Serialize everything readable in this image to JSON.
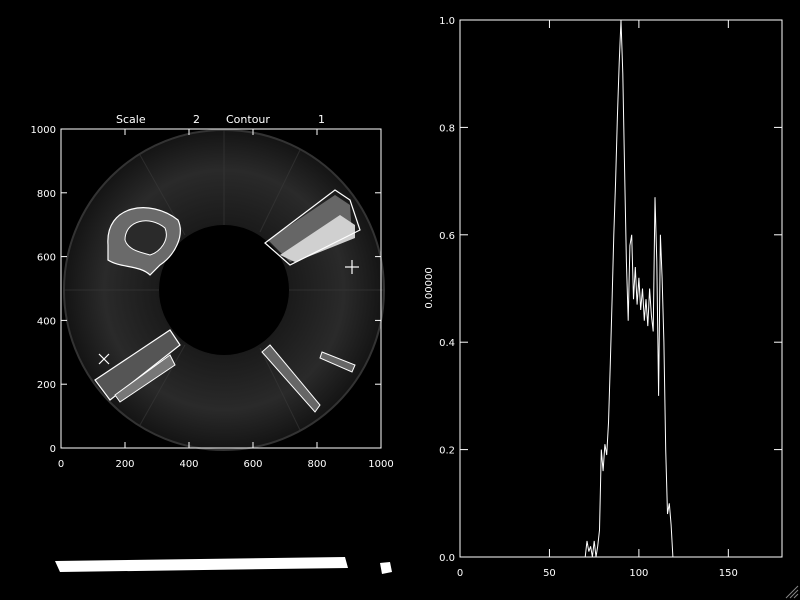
{
  "image_panel": {
    "header": {
      "scale_label": "Scale",
      "scale_value": "2",
      "contour_label": "Contour",
      "contour_value": "1"
    },
    "x_ticks": [
      "0",
      "200",
      "400",
      "600",
      "800",
      "1000"
    ],
    "y_ticks": [
      "0",
      "200",
      "400",
      "600",
      "800",
      "1000"
    ]
  },
  "chart_data": {
    "type": "line",
    "title": "",
    "xlabel": "",
    "ylabel": "0.00000",
    "xlim": [
      0,
      180
    ],
    "ylim": [
      0,
      1.0
    ],
    "x_ticks": [
      "0",
      "50",
      "100",
      "150"
    ],
    "y_ticks": [
      "0.0",
      "0.2",
      "0.4",
      "0.6",
      "0.8",
      "1.0"
    ],
    "series": [
      {
        "x": [
          0,
          70,
          71,
          72,
          73,
          74,
          75,
          76,
          77,
          78,
          79,
          80,
          81,
          82,
          83,
          84,
          85,
          86,
          87,
          88,
          89,
          90,
          91,
          92,
          93,
          94,
          95,
          96,
          97,
          98,
          99,
          100,
          101,
          102,
          103,
          104,
          105,
          106,
          107,
          108,
          109,
          110,
          111,
          112,
          113,
          114,
          115,
          116,
          117,
          118,
          119,
          120,
          121,
          180
        ],
        "y": [
          0,
          0,
          0.03,
          0.01,
          0.02,
          0.0,
          0.03,
          0.0,
          0.02,
          0.05,
          0.2,
          0.16,
          0.21,
          0.19,
          0.25,
          0.36,
          0.48,
          0.6,
          0.7,
          0.82,
          0.92,
          1.0,
          0.9,
          0.72,
          0.55,
          0.44,
          0.58,
          0.6,
          0.48,
          0.54,
          0.47,
          0.52,
          0.46,
          0.5,
          0.44,
          0.48,
          0.43,
          0.5,
          0.45,
          0.42,
          0.67,
          0.55,
          0.3,
          0.6,
          0.52,
          0.4,
          0.2,
          0.08,
          0.1,
          0.06,
          0.0,
          0.0,
          0.0,
          0.0
        ]
      }
    ]
  }
}
